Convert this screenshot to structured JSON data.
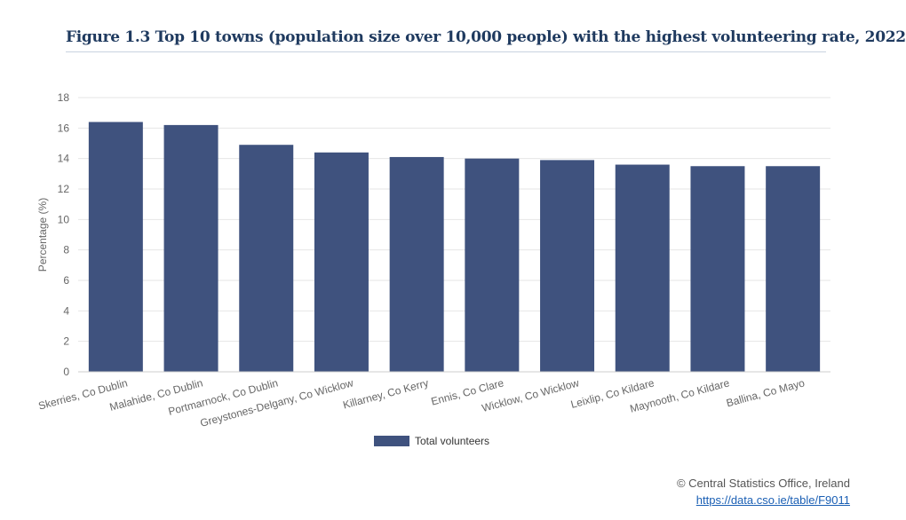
{
  "title": "Figure 1.3 Top 10 towns (population size over 10,000 people) with the highest volunteering rate, 2022",
  "credit": {
    "text": "© Central Statistics Office, Ireland",
    "link": "https://data.cso.ie/table/F9011"
  },
  "legend": {
    "label": "Total volunteers"
  },
  "colors": {
    "bar": "#3f527e",
    "grid": "#e6e6e6",
    "axis_text": "#666666"
  },
  "chart_data": {
    "type": "bar",
    "title": "Figure 1.3 Top 10 towns (population size over 10,000 people) with the highest volunteering rate, 2022",
    "xlabel": "",
    "ylabel": "Percentage (%)",
    "ylim": [
      0,
      18
    ],
    "yticks": [
      0,
      2,
      4,
      6,
      8,
      10,
      12,
      14,
      16,
      18
    ],
    "categories": [
      "Skerries, Co Dublin",
      "Malahide, Co Dublin",
      "Portmarnock, Co Dublin",
      "Greystones-Delgany, Co Wicklow",
      "Killarney, Co Kerry",
      "Ennis, Co Clare",
      "Wicklow, Co Wicklow",
      "Leixlip, Co Kildare",
      "Maynooth, Co Kildare",
      "Ballina, Co Mayo"
    ],
    "series": [
      {
        "name": "Total volunteers",
        "values": [
          16.4,
          16.2,
          14.9,
          14.4,
          14.1,
          14.0,
          13.9,
          13.6,
          13.5,
          13.5
        ]
      }
    ],
    "grid": true,
    "legend_position": "bottom-center"
  }
}
